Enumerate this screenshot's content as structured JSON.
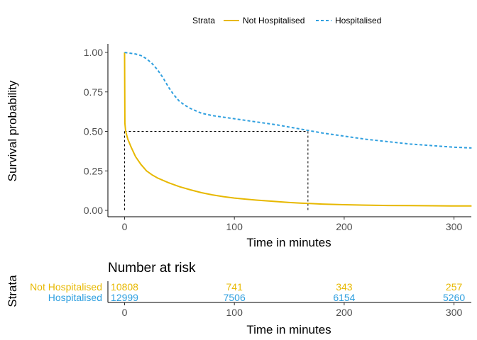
{
  "chart_data": [
    {
      "type": "line",
      "subtype": "kaplan-meier survival curve",
      "legend": {
        "title": "Strata",
        "position": "top",
        "entries": [
          "Not Hospitalised",
          "Hospitalised"
        ]
      },
      "xlabel": "Time in minutes",
      "ylabel": "Survival probability",
      "xlim": [
        0,
        316
      ],
      "ylim": [
        0,
        1
      ],
      "xticks": [
        "0",
        "100",
        "200",
        "300"
      ],
      "yticks": [
        "0.00",
        "0.25",
        "0.50",
        "0.75",
        "1.00"
      ],
      "grid": false,
      "series": [
        {
          "name": "Not Hospitalised",
          "color": "#E7B800",
          "line_style": "solid",
          "x": [
            0,
            0.3,
            1,
            3,
            6,
            10,
            15,
            20,
            25,
            30,
            40,
            50,
            60,
            70,
            80,
            90,
            100,
            110,
            120,
            130,
            140,
            150,
            160,
            170,
            180,
            200,
            220,
            240,
            260,
            280,
            300,
            316
          ],
          "y": [
            1.0,
            0.55,
            0.5,
            0.45,
            0.4,
            0.34,
            0.29,
            0.25,
            0.225,
            0.205,
            0.175,
            0.15,
            0.13,
            0.112,
            0.098,
            0.087,
            0.078,
            0.071,
            0.065,
            0.06,
            0.055,
            0.05,
            0.046,
            0.043,
            0.04,
            0.036,
            0.033,
            0.031,
            0.03,
            0.029,
            0.028,
            0.028
          ]
        },
        {
          "name": "Hospitalised",
          "color": "#2E9FDF",
          "line_style": "dashed",
          "x": [
            0,
            5,
            10,
            15,
            20,
            25,
            30,
            35,
            40,
            45,
            50,
            55,
            60,
            70,
            80,
            90,
            100,
            110,
            120,
            140,
            160,
            180,
            200,
            220,
            240,
            260,
            280,
            300,
            316
          ],
          "y": [
            1.0,
            0.995,
            0.99,
            0.98,
            0.96,
            0.93,
            0.89,
            0.84,
            0.78,
            0.73,
            0.69,
            0.665,
            0.645,
            0.615,
            0.6,
            0.59,
            0.58,
            0.57,
            0.56,
            0.54,
            0.515,
            0.49,
            0.47,
            0.45,
            0.435,
            0.42,
            0.41,
            0.4,
            0.395
          ]
        }
      ],
      "median_lines": {
        "y": 0.5,
        "x": [
          0,
          167
        ]
      }
    },
    {
      "type": "table",
      "title": "Number at risk",
      "ylabel": "Strata",
      "xlabel": "Time in minutes",
      "xlim": [
        0,
        316
      ],
      "xticks": [
        "0",
        "100",
        "200",
        "300"
      ],
      "rows": [
        {
          "name": "Not Hospitalised",
          "color": "#E7B800",
          "x": [
            0,
            100,
            200,
            300
          ],
          "values": [
            "10808",
            "741",
            "343",
            "257"
          ]
        },
        {
          "name": "Hospitalised",
          "color": "#2E9FDF",
          "x": [
            0,
            100,
            200,
            300
          ],
          "values": [
            "12999",
            "7506",
            "6154",
            "5260"
          ]
        }
      ]
    }
  ]
}
